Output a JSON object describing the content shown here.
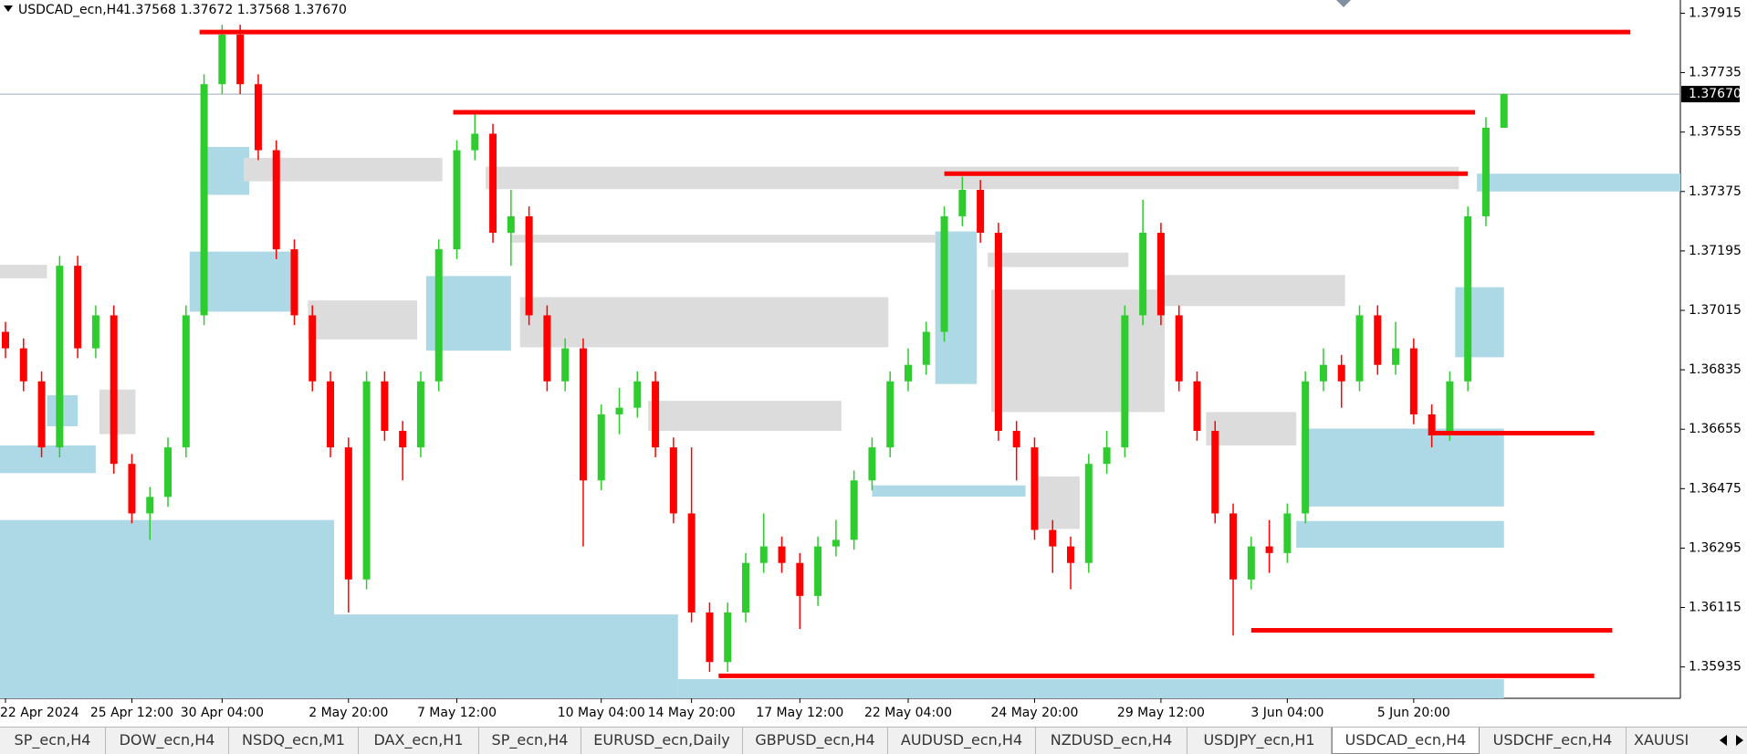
{
  "header": {
    "symbol": "USDCAD_ecn,H4",
    "quote": "1.37568 1.37672 1.37568 1.37670"
  },
  "chart_data": {
    "type": "candlestick",
    "categories": [
      "22 Apr 2024",
      null,
      null,
      null,
      null,
      null,
      null,
      "25 Apr 12:00",
      null,
      null,
      null,
      null,
      "30 Apr 04:00",
      null,
      null,
      null,
      null,
      null,
      null,
      "2 May 20:00",
      null,
      null,
      null,
      null,
      null,
      "7 May 12:00",
      null,
      null,
      null,
      null,
      null,
      null,
      null,
      "10 May 04:00",
      null,
      null,
      null,
      null,
      "14 May 20:00",
      null,
      null,
      null,
      null,
      null,
      "17 May 12:00",
      null,
      null,
      null,
      null,
      null,
      "22 May 04:00",
      null,
      null,
      null,
      null,
      null,
      null,
      "24 May 20:00",
      null,
      null,
      null,
      null,
      null,
      null,
      "29 May 12:00",
      null,
      null,
      null,
      null,
      null,
      null,
      "3 Jun 04:00",
      null,
      null,
      null,
      null,
      null,
      null,
      "5 Jun 20:00",
      null,
      null,
      null,
      null,
      null
    ],
    "open": [
      1.3695,
      1.369,
      1.368,
      1.366,
      1.3715,
      1.369,
      1.37,
      1.3655,
      1.364,
      1.3645,
      1.366,
      1.37,
      1.377,
      1.3785,
      1.377,
      1.375,
      1.372,
      1.37,
      1.368,
      1.366,
      1.362,
      1.368,
      1.3665,
      1.366,
      1.368,
      1.372,
      1.375,
      1.3755,
      1.3725,
      1.373,
      1.37,
      1.368,
      1.369,
      1.365,
      1.367,
      1.3672,
      1.368,
      1.366,
      1.364,
      1.361,
      1.3595,
      1.361,
      1.3625,
      1.363,
      1.3625,
      1.3615,
      1.363,
      1.3632,
      1.365,
      1.366,
      1.368,
      1.3685,
      1.3695,
      1.373,
      1.3738,
      1.3725,
      1.3665,
      1.366,
      1.3635,
      1.363,
      1.3625,
      1.3655,
      1.366,
      1.37,
      1.3725,
      1.37,
      1.368,
      1.3665,
      1.364,
      1.362,
      1.363,
      1.3628,
      1.364,
      1.368,
      1.3685,
      1.368,
      1.37,
      1.3685,
      1.369,
      1.367,
      1.3665,
      1.368,
      1.373,
      1.37568
    ],
    "high": [
      1.3698,
      1.3693,
      1.3683,
      1.3718,
      1.3718,
      1.3703,
      1.3703,
      1.3658,
      1.3648,
      1.3663,
      1.3703,
      1.3773,
      1.3788,
      1.3788,
      1.3773,
      1.3753,
      1.3723,
      1.3703,
      1.3683,
      1.3663,
      1.3683,
      1.3683,
      1.3668,
      1.3683,
      1.3723,
      1.3753,
      1.3762,
      1.3758,
      1.3738,
      1.3733,
      1.3703,
      1.3693,
      1.3693,
      1.3673,
      1.3678,
      1.3683,
      1.3683,
      1.3663,
      1.366,
      1.3613,
      1.3613,
      1.3628,
      1.364,
      1.3633,
      1.3628,
      1.3633,
      1.3638,
      1.3653,
      1.3663,
      1.3683,
      1.369,
      1.3698,
      1.3733,
      1.3742,
      1.3741,
      1.3728,
      1.3668,
      1.3663,
      1.3638,
      1.3633,
      1.3658,
      1.3665,
      1.3703,
      1.3735,
      1.3728,
      1.3703,
      1.3683,
      1.3668,
      1.3643,
      1.3633,
      1.3638,
      1.3643,
      1.3683,
      1.369,
      1.3688,
      1.3703,
      1.3703,
      1.3698,
      1.3693,
      1.3673,
      1.3683,
      1.3733,
      1.376,
      1.37672
    ],
    "low": [
      1.3687,
      1.3677,
      1.3657,
      1.3657,
      1.3687,
      1.3687,
      1.3652,
      1.3637,
      1.3632,
      1.3642,
      1.3657,
      1.3697,
      1.3767,
      1.3767,
      1.3747,
      1.3717,
      1.3697,
      1.3677,
      1.3657,
      1.361,
      1.3617,
      1.3662,
      1.365,
      1.3657,
      1.3677,
      1.3717,
      1.3747,
      1.3722,
      1.3715,
      1.3697,
      1.3677,
      1.3677,
      1.363,
      1.3647,
      1.3664,
      1.3669,
      1.3657,
      1.3637,
      1.3607,
      1.3592,
      1.3592,
      1.3607,
      1.3622,
      1.3622,
      1.3605,
      1.3612,
      1.3627,
      1.3629,
      1.3647,
      1.3657,
      1.3677,
      1.3682,
      1.3692,
      1.3727,
      1.3722,
      1.3662,
      1.365,
      1.3632,
      1.3622,
      1.3617,
      1.3622,
      1.3652,
      1.3657,
      1.3697,
      1.3697,
      1.3677,
      1.3662,
      1.3637,
      1.3603,
      1.3617,
      1.3622,
      1.3625,
      1.3637,
      1.3677,
      1.3672,
      1.3677,
      1.3682,
      1.3682,
      1.3667,
      1.366,
      1.3662,
      1.3677,
      1.3727,
      1.37568
    ],
    "close": [
      1.369,
      1.368,
      1.366,
      1.3715,
      1.369,
      1.37,
      1.3655,
      1.364,
      1.3645,
      1.366,
      1.37,
      1.377,
      1.3785,
      1.377,
      1.375,
      1.372,
      1.37,
      1.368,
      1.366,
      1.362,
      1.368,
      1.3665,
      1.366,
      1.368,
      1.372,
      1.375,
      1.3755,
      1.3725,
      1.373,
      1.37,
      1.368,
      1.369,
      1.365,
      1.367,
      1.3672,
      1.368,
      1.366,
      1.364,
      1.361,
      1.3595,
      1.361,
      1.3625,
      1.363,
      1.3625,
      1.3615,
      1.363,
      1.3632,
      1.365,
      1.366,
      1.368,
      1.3685,
      1.3695,
      1.373,
      1.3738,
      1.3725,
      1.3665,
      1.366,
      1.3635,
      1.363,
      1.3625,
      1.3655,
      1.366,
      1.37,
      1.3725,
      1.37,
      1.368,
      1.3665,
      1.364,
      1.362,
      1.363,
      1.3628,
      1.364,
      1.368,
      1.3685,
      1.368,
      1.37,
      1.3685,
      1.369,
      1.367,
      1.3665,
      1.368,
      1.373,
      1.37568,
      1.3767
    ],
    "up_color": "#2ecc2e",
    "down_color": "#ff0000",
    "ylim": [
      1.3584,
      1.37955
    ],
    "yticks": [
      1.37915,
      1.37735,
      1.37555,
      1.37375,
      1.37195,
      1.37015,
      1.36835,
      1.36655,
      1.36475,
      1.36295,
      1.36115,
      1.35935
    ],
    "current_price": {
      "value": 1.3767,
      "label": "1.37670"
    },
    "zones": [
      {
        "start": 0,
        "end": 18.7,
        "top": 1.3638,
        "bottom": 1.3584,
        "color": "#add8e6"
      },
      {
        "start": 18.7,
        "end": 37.75,
        "top": 1.36094,
        "bottom": 1.3584,
        "color": "#add8e6"
      },
      {
        "start": 37.75,
        "end": 83.5,
        "top": 1.35898,
        "bottom": 1.3584,
        "color": "#add8e6"
      },
      {
        "start": 10.7,
        "end": 16.5,
        "top": 1.37193,
        "bottom": 1.37011,
        "color": "#add8e6"
      },
      {
        "start": 11.3,
        "end": 14,
        "top": 1.3751,
        "bottom": 1.37365,
        "color": "#add8e6"
      },
      {
        "start": 23.8,
        "end": 28.5,
        "top": 1.37119,
        "bottom": 1.36893,
        "color": "#add8e6"
      },
      {
        "start": 52,
        "end": 54.3,
        "top": 1.37254,
        "bottom": 1.36792,
        "color": "#add8e6"
      },
      {
        "start": 82,
        "end": 94,
        "top": 1.37429,
        "bottom": 1.37375,
        "color": "#add8e6"
      },
      {
        "start": 72.3,
        "end": 83.5,
        "top": 1.36657,
        "bottom": 1.36421,
        "color": "#add8e6"
      },
      {
        "start": 72,
        "end": 83.5,
        "top": 1.36377,
        "bottom": 1.36296,
        "color": "#add8e6"
      },
      {
        "start": 80.8,
        "end": 83.5,
        "top": 1.37085,
        "bottom": 1.36873,
        "color": "#add8e6"
      },
      {
        "start": 0,
        "end": 5.5,
        "top": 1.36606,
        "bottom": 1.36522,
        "color": "#add8e6"
      },
      {
        "start": 48.5,
        "end": 57,
        "top": 1.36485,
        "bottom": 1.36451,
        "color": "#add8e6"
      },
      {
        "start": 2.8,
        "end": 4.5,
        "top": 1.36758,
        "bottom": 1.36664,
        "color": "#add8e6"
      },
      {
        "start": 62.7,
        "end": 64.7,
        "top": 1.37028,
        "bottom": 1.3681,
        "color": "#add8e6"
      },
      {
        "start": 13.7,
        "end": 24.7,
        "top": 1.37477,
        "bottom": 1.37406,
        "color": "#dcdcdc"
      },
      {
        "start": 27.1,
        "end": 81,
        "top": 1.3745,
        "bottom": 1.37382,
        "color": "#dcdcdc"
      },
      {
        "start": 28.5,
        "end": 52,
        "top": 1.37244,
        "bottom": 1.3722,
        "color": "#dcdcdc"
      },
      {
        "start": 29,
        "end": 49.4,
        "top": 1.37055,
        "bottom": 1.36903,
        "color": "#dcdcdc"
      },
      {
        "start": 17.25,
        "end": 23.3,
        "top": 1.37045,
        "bottom": 1.36927,
        "color": "#dcdcdc"
      },
      {
        "start": 36.1,
        "end": 46.8,
        "top": 1.36741,
        "bottom": 1.3665,
        "color": "#dcdcdc"
      },
      {
        "start": 55.1,
        "end": 64.7,
        "top": 1.37078,
        "bottom": 1.36707,
        "color": "#dcdcdc"
      },
      {
        "start": 64.7,
        "end": 74.7,
        "top": 1.37122,
        "bottom": 1.37028,
        "color": "#dcdcdc"
      },
      {
        "start": 54.9,
        "end": 62.7,
        "top": 1.3719,
        "bottom": 1.37146,
        "color": "#dcdcdc"
      },
      {
        "start": 57.3,
        "end": 60,
        "top": 1.36512,
        "bottom": 1.36353,
        "color": "#dcdcdc"
      },
      {
        "start": 0,
        "end": 2.8,
        "top": 1.37153,
        "bottom": 1.37112,
        "color": "#dcdcdc"
      },
      {
        "start": 5.7,
        "end": 7.7,
        "top": 1.36775,
        "bottom": 1.3664,
        "color": "#dcdcdc"
      },
      {
        "start": 67,
        "end": 72,
        "top": 1.36707,
        "bottom": 1.36606,
        "color": "#dcdcdc"
      }
    ],
    "levels": [
      {
        "price": 1.37858,
        "start": 10.75,
        "end": 90
      },
      {
        "price": 1.37615,
        "start": 24.8,
        "end": 81.4
      },
      {
        "price": 1.37429,
        "start": 52,
        "end": 81
      },
      {
        "price": 1.36643,
        "start": 78.8,
        "end": 88
      },
      {
        "price": 1.36046,
        "start": 69,
        "end": 89
      },
      {
        "price": 1.35908,
        "start": 39.5,
        "end": 88
      }
    ],
    "level_color": "#ff0000"
  },
  "tabs": [
    "SP_ecn,H4",
    "DOW_ecn,H4",
    "NSDQ_ecn,M1",
    "DAX_ecn,H1",
    "SP_ecn,H4",
    "EURUSD_ecn,Daily",
    "GBPUSD_ecn,H4",
    "AUDUSD_ecn,H4",
    "NZDUSD_ecn,H4",
    "USDJPY_ecn,H1",
    "USDCAD_ecn,H4",
    "USDCHF_ecn,H4",
    "XAUUSI"
  ],
  "active_tab": 10
}
